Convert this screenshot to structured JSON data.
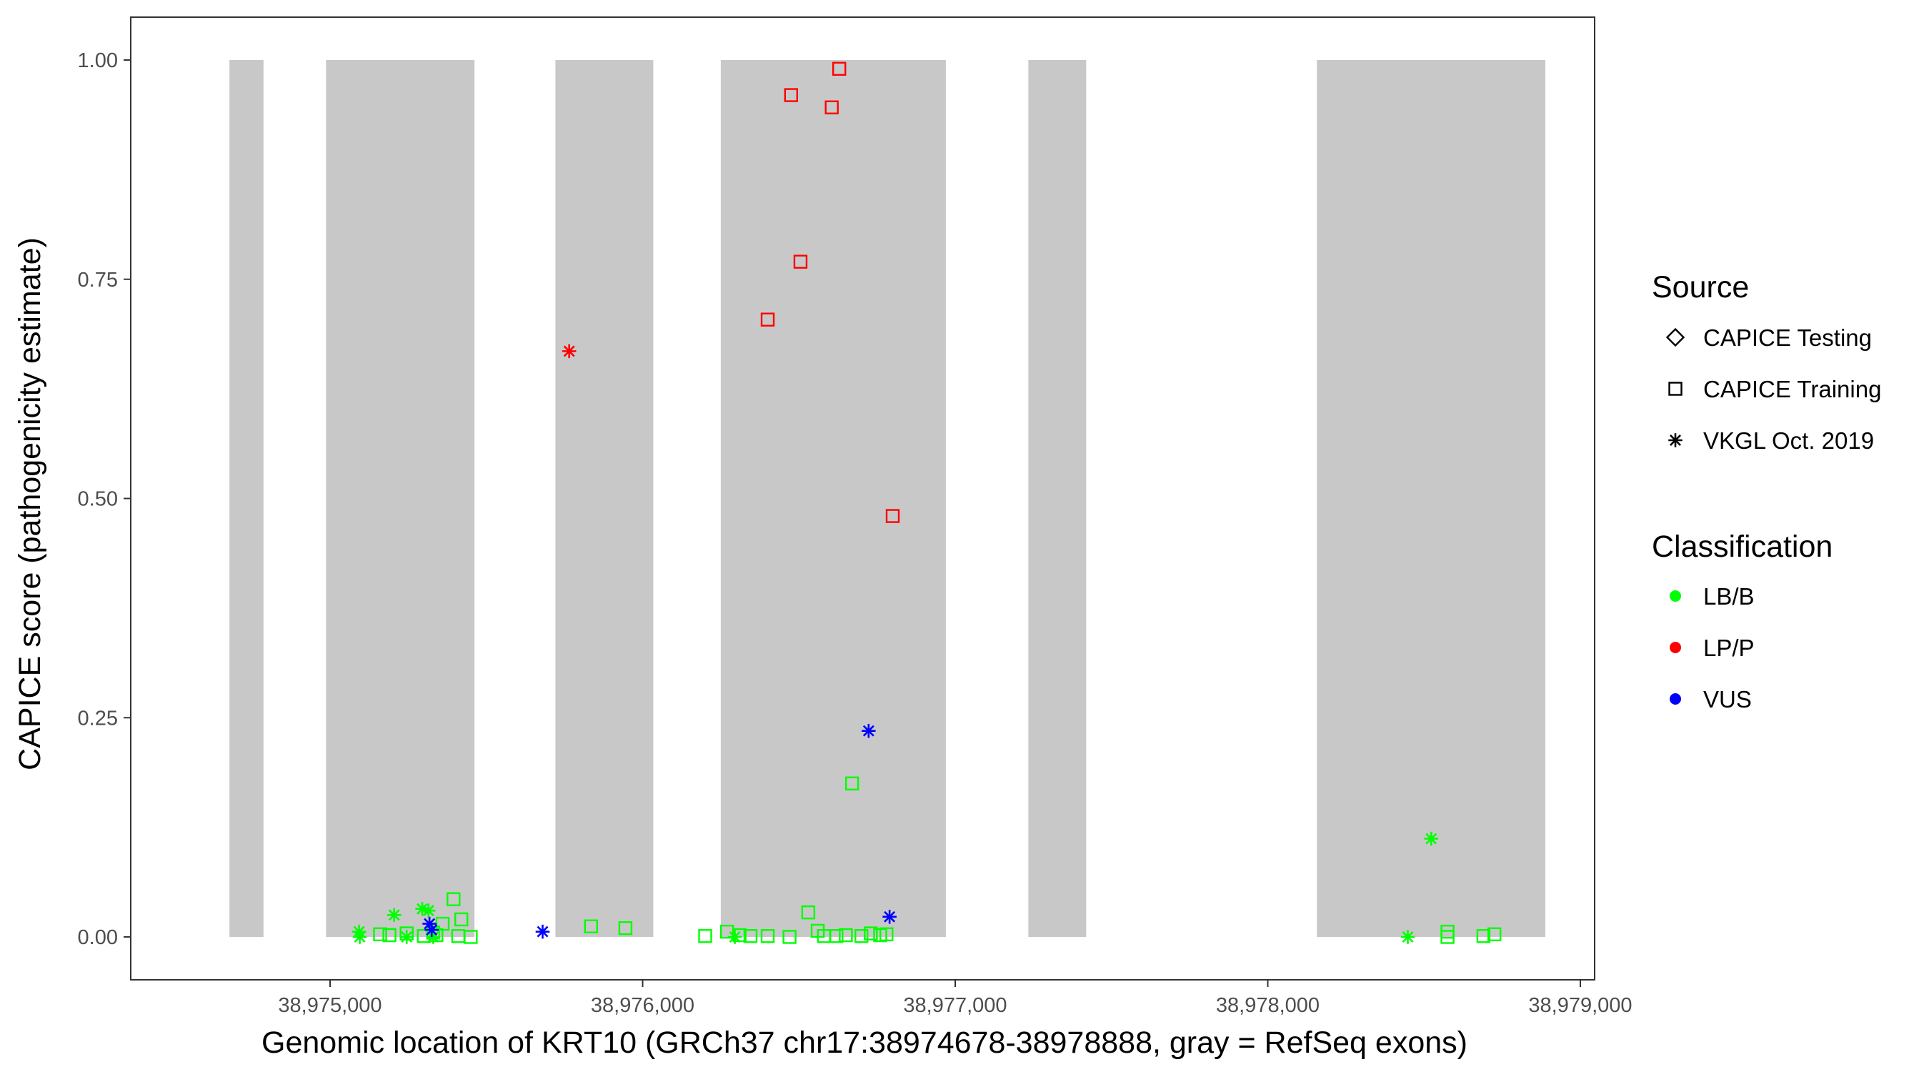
{
  "chart_data": {
    "type": "scatter",
    "xlabel": "Genomic location of KRT10 (GRCh37 chr17:38974678-38978888, gray = RefSeq exons)",
    "ylabel": "CAPICE score (pathogenicity estimate)",
    "xlim": [
      38974678,
      38978888
    ],
    "ylim": [
      0,
      1
    ],
    "x_ticks": [
      38975000,
      38976000,
      38977000,
      38978000,
      38979000
    ],
    "x_tick_labels": [
      "38,975,000",
      "38,976,000",
      "38,977,000",
      "38,978,000",
      "38,979,000"
    ],
    "y_ticks": [
      0,
      0.25,
      0.5,
      0.75,
      1
    ],
    "y_tick_labels": [
      "0.00",
      "0.25",
      "0.50",
      "0.75",
      "1.00"
    ],
    "grid": false,
    "exon_color": "#c8c8c8",
    "exons": [
      [
        38974678,
        38974787
      ],
      [
        38974987,
        38975462
      ],
      [
        38975721,
        38976034
      ],
      [
        38976250,
        38976970
      ],
      [
        38977234,
        38977419
      ],
      [
        38978157,
        38978888
      ]
    ],
    "legend_position": "right",
    "legend": {
      "source_title": "Source",
      "source_items": [
        {
          "label": "CAPICE Testing",
          "shape": "diamond"
        },
        {
          "label": "CAPICE Training",
          "shape": "square"
        },
        {
          "label": "VKGL Oct. 2019",
          "shape": "asterisk"
        }
      ],
      "classification_title": "Classification",
      "classification_items": [
        {
          "label": "LB/B",
          "color": "#00ff00"
        },
        {
          "label": "LP/P",
          "color": "#ff0000"
        },
        {
          "label": "VUS",
          "color": "#0000ff"
        }
      ]
    },
    "series": [
      {
        "name": "CAPICE Training / LP/P",
        "shape": "square",
        "color": "#ff0000",
        "points": [
          [
            38976629,
            0.99
          ],
          [
            38976475,
            0.96
          ],
          [
            38976605,
            0.946
          ],
          [
            38976505,
            0.77
          ],
          [
            38976400,
            0.704
          ],
          [
            38976800,
            0.48
          ]
        ]
      },
      {
        "name": "CAPICE Training / LB/B",
        "shape": "square",
        "color": "#00ff00",
        "points": [
          [
            38975395,
            0.043
          ],
          [
            38975420,
            0.02
          ],
          [
            38975360,
            0.015
          ],
          [
            38975330,
            0.005
          ],
          [
            38975160,
            0.003
          ],
          [
            38975190,
            0.002
          ],
          [
            38975245,
            0.004
          ],
          [
            38975300,
            0.001
          ],
          [
            38975340,
            0.002
          ],
          [
            38975410,
            0.001
          ],
          [
            38975450,
            0.0
          ],
          [
            38975835,
            0.012
          ],
          [
            38975945,
            0.01
          ],
          [
            38976200,
            0.001
          ],
          [
            38976270,
            0.006
          ],
          [
            38976310,
            0.002
          ],
          [
            38976345,
            0.001
          ],
          [
            38976400,
            0.001
          ],
          [
            38976470,
            0.0
          ],
          [
            38976530,
            0.028
          ],
          [
            38976560,
            0.007
          ],
          [
            38976580,
            0.001
          ],
          [
            38976620,
            0.001
          ],
          [
            38976650,
            0.002
          ],
          [
            38976670,
            0.175
          ],
          [
            38976700,
            0.001
          ],
          [
            38976730,
            0.004
          ],
          [
            38976760,
            0.002
          ],
          [
            38976780,
            0.003
          ],
          [
            38978575,
            0.006
          ],
          [
            38978575,
            0.0
          ],
          [
            38978690,
            0.001
          ],
          [
            38978725,
            0.003
          ]
        ]
      },
      {
        "name": "VKGL Oct. 2019 / LP/P",
        "shape": "asterisk",
        "color": "#ff0000",
        "points": [
          [
            38975765,
            0.668
          ]
        ]
      },
      {
        "name": "VKGL Oct. 2019 / LB/B",
        "shape": "asterisk",
        "color": "#00ff00",
        "points": [
          [
            38975093,
            0.006
          ],
          [
            38975095,
            0.0
          ],
          [
            38975205,
            0.025
          ],
          [
            38975245,
            0.0
          ],
          [
            38975295,
            0.032
          ],
          [
            38975315,
            0.03
          ],
          [
            38975330,
            0.0
          ],
          [
            38976295,
            0.0
          ],
          [
            38978448,
            0.0
          ],
          [
            38978523,
            0.112
          ]
        ]
      },
      {
        "name": "VKGL Oct. 2019 / VUS",
        "shape": "asterisk",
        "color": "#0000ff",
        "points": [
          [
            38975318,
            0.015
          ],
          [
            38975325,
            0.008
          ],
          [
            38975680,
            0.006
          ],
          [
            38976723,
            0.235
          ],
          [
            38976790,
            0.023
          ]
        ]
      }
    ]
  }
}
